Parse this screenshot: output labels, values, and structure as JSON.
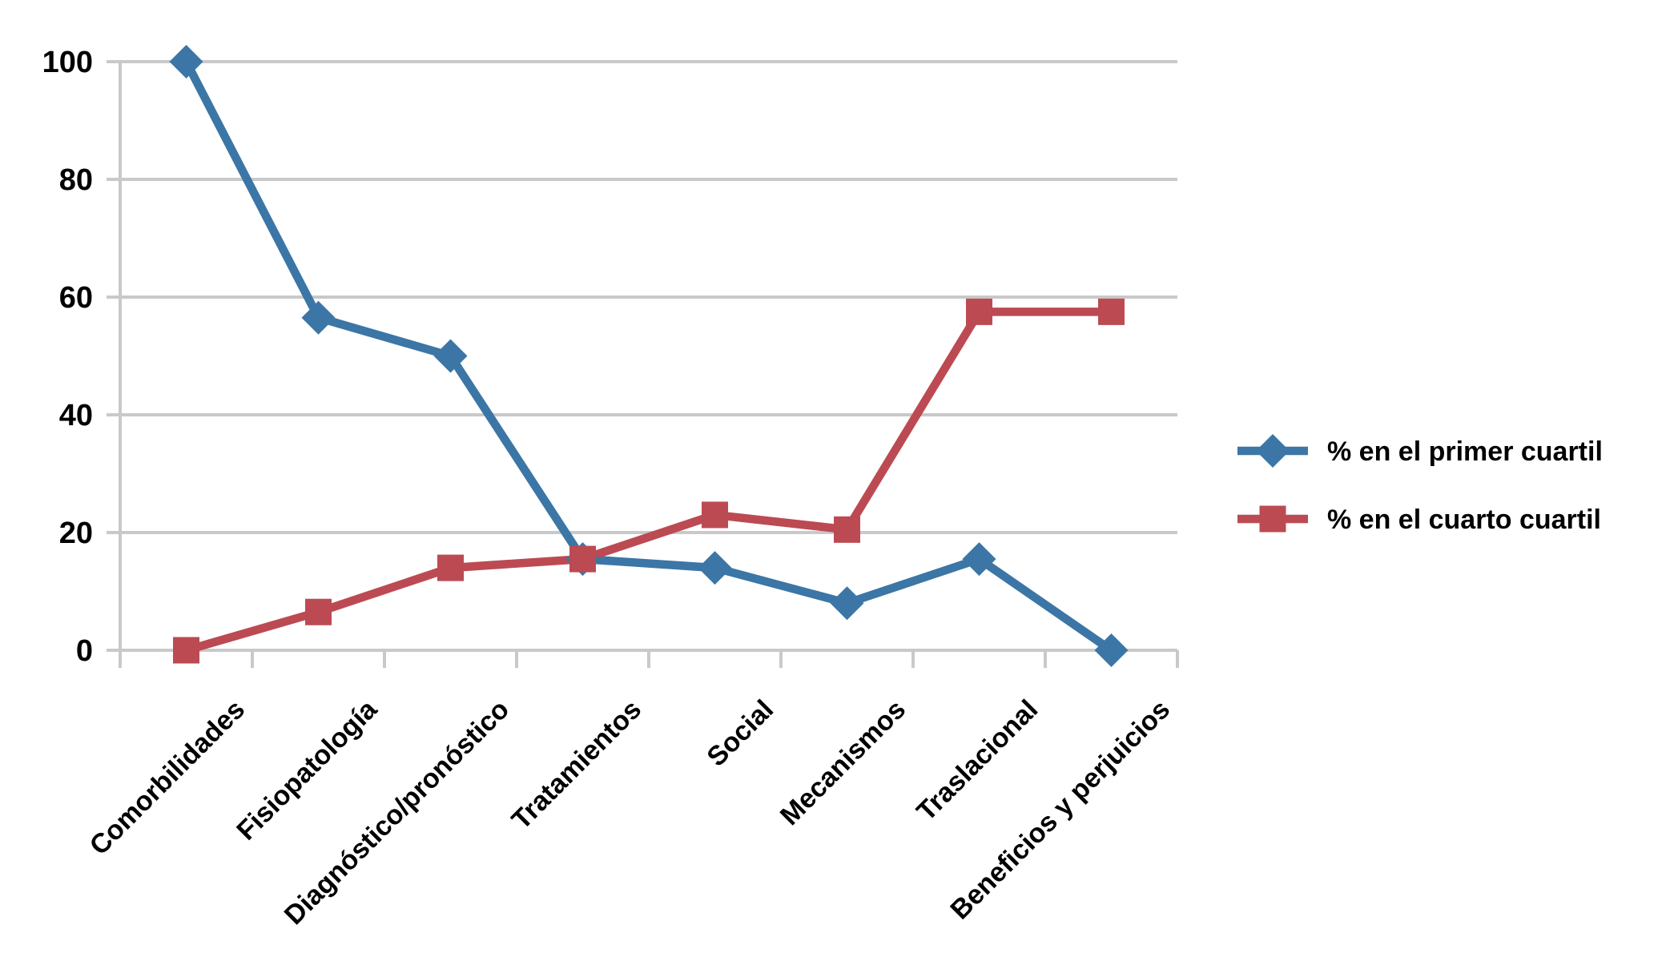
{
  "chart_data": {
    "type": "line",
    "title": "",
    "categories": [
      "Comorbilidades",
      "Fisiopatología",
      "Diagnóstico/pronóstico",
      "Tratamientos",
      "Social",
      "Mecanismos",
      "Traslacional",
      "Beneficios y perjuicios"
    ],
    "series": [
      {
        "name": "% en el primer cuartil",
        "marker": "diamond",
        "color": "#3B76A6",
        "values": [
          100,
          56.5,
          50,
          15.5,
          14,
          8,
          15.5,
          0
        ]
      },
      {
        "name": "% en el cuarto cuartil",
        "marker": "square",
        "color": "#BC4A53",
        "values": [
          0,
          6.5,
          14,
          15.5,
          23,
          20.5,
          57.5,
          57.5
        ]
      }
    ],
    "xlabel": "",
    "ylabel": "",
    "ylim": [
      0,
      100
    ],
    "yticks": [
      0,
      20,
      40,
      60,
      80,
      100
    ],
    "grid": "horizontal-only",
    "gridline_color": "#C9C9C9",
    "axis_color": "#C9C9C9",
    "text_color": "#000000",
    "background": "#FFFFFF",
    "legend_position": "center-right"
  }
}
